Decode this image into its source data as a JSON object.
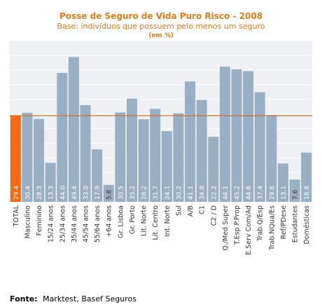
{
  "source_label": "Fonte:",
  "source_text": "Marktest, Basef Seguros",
  "colors": {
    "title": "#e07b1c",
    "plot_bg": "#eef0f3",
    "grid": "#ffffff",
    "bar": "#98afc4",
    "highlight_bar": "#f26a12",
    "reference_line": "#d46a1a",
    "value_label": "#ffffff",
    "axis_text": "#333333"
  },
  "chart_data": {
    "type": "bar",
    "title": "Posse de Seguro de Vida Puro Risco - 2008",
    "subtitle": "Base: indivíduos que possuem pelo menos um seguro",
    "unit_note": "(em %)",
    "xlabel": "",
    "ylabel": "",
    "ylim": [
      0,
      55
    ],
    "grid": true,
    "reference_line": {
      "value": 29.4
    },
    "highlight_category": "TOTAL",
    "categories": [
      "TOTAL",
      "Masculino",
      "Feminino",
      "15/24 anos",
      "25/34 anos",
      "35/44 anos",
      "45/54 anos",
      "55/64 anos",
      "+64  anos",
      "Gr. Lisboa",
      "Gr. Porto",
      "Lit. Norte",
      "Lit. Centro",
      "Int. Norte",
      "Sul",
      "A/B",
      "C1",
      "C2 / D",
      "Q./Med Super",
      "T.Esp P.Prop",
      "E.Serv Com/Ad",
      "Trab.Q/Esp",
      "Trab.NQua/Es",
      "Ref/PDese",
      "Estudantes",
      "Domésticas"
    ],
    "values": [
      29.4,
      30.4,
      28.3,
      13.3,
      44.0,
      49.4,
      33.0,
      17.9,
      5.8,
      30.5,
      35.2,
      28.2,
      31.7,
      24.1,
      30.2,
      41.1,
      34.8,
      22.2,
      46.1,
      45.2,
      44.6,
      37.4,
      29.6,
      13.1,
      7.6,
      16.8
    ],
    "value_labels": [
      "29.4",
      "30.4",
      "28.3",
      "13.3",
      "44.0",
      "49.4",
      "33.0",
      "17.9",
      "5.8",
      "30.5",
      "35.2",
      "28.2",
      "31.7",
      "24.1",
      "30.2",
      "41.1",
      "34.8",
      "22.2",
      "46.1",
      "45.2",
      "44.6",
      "37.4",
      "29.6",
      "13.1",
      "7.6",
      "16.8"
    ]
  }
}
